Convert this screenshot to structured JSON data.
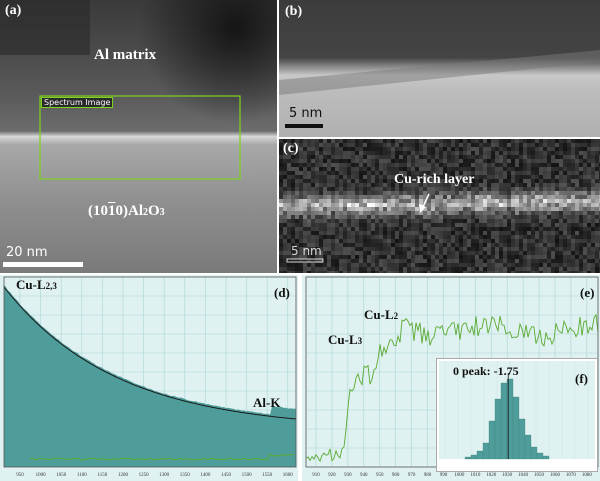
{
  "panel_a": {
    "label": "(a)",
    "matrix_label": "Al matrix",
    "spectrum_label": "Spectrum Image",
    "oxide_label_prefix": "(10",
    "oxide_label_bar": "1",
    "oxide_label_suffix": "0)Al",
    "oxide_sub1": "2",
    "oxide_mid": "O",
    "oxide_sub2": "3",
    "scale": "20 nm"
  },
  "panel_b": {
    "label": "(b)",
    "scale": "5 nm"
  },
  "panel_c": {
    "label": "(c)",
    "layer_label": "Cu-rich layer",
    "scale": "5 nm"
  },
  "panel_d": {
    "label": "(d)",
    "peak1_main": "Cu-L",
    "peak1_sub": "2,3",
    "peak2": "Al-K",
    "x_ticks": [
      "950",
      "1000",
      "1050",
      "1100",
      "1150",
      "1200",
      "1250",
      "1300",
      "1350",
      "1400",
      "1450",
      "1500",
      "1550",
      "1600"
    ],
    "x_unit": "eV"
  },
  "panel_e": {
    "label": "(e)",
    "peak_l3_main": "Cu-L",
    "peak_l3_sub": "3",
    "peak_l2_main": "Cu-L",
    "peak_l2_sub": "2",
    "x_ticks": [
      "910",
      "920",
      "930",
      "940",
      "950",
      "960",
      "970",
      "980",
      "990",
      "1000",
      "1010",
      "1020",
      "1030",
      "1040",
      "1050",
      "1060",
      "1070",
      "1080"
    ],
    "x_unit": "eV"
  },
  "panel_f": {
    "label": "(f)",
    "peak_text": "0 peak: -1.75"
  },
  "colors": {
    "teal": "#4f9d9b",
    "grid_bg": "#dff1f0",
    "green": "#5aaa32",
    "frame_green": "#7ed321"
  }
}
